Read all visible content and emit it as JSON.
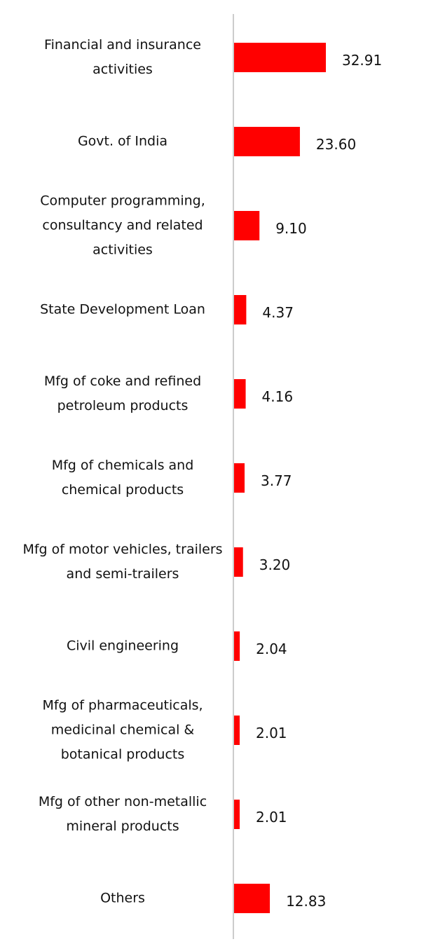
{
  "chart_data": {
    "type": "bar",
    "orientation": "horizontal",
    "color": "#ff0000",
    "categories": [
      "Financial and insurance activities",
      "Govt. of India",
      "Computer programming, consultancy and related activities",
      "State Development Loan",
      "Mfg of coke and refined petroleum products",
      "Mfg of chemicals and chemical products",
      "Mfg of motor vehicles, trailers and semi-trailers",
      "Civil engineering",
      "Mfg of pharmaceuticals, medicinal chemical & botanical products",
      "Mfg of other non-metallic mineral products",
      "Others"
    ],
    "values": [
      32.91,
      23.6,
      9.1,
      4.37,
      4.16,
      3.77,
      3.2,
      2.04,
      2.01,
      2.01,
      12.83
    ],
    "value_labels": [
      "32.91",
      "23.60",
      "9.10",
      "4.37",
      "4.16",
      "3.77",
      "3.20",
      "2.04",
      "2.01",
      "2.01",
      "12.83"
    ]
  }
}
